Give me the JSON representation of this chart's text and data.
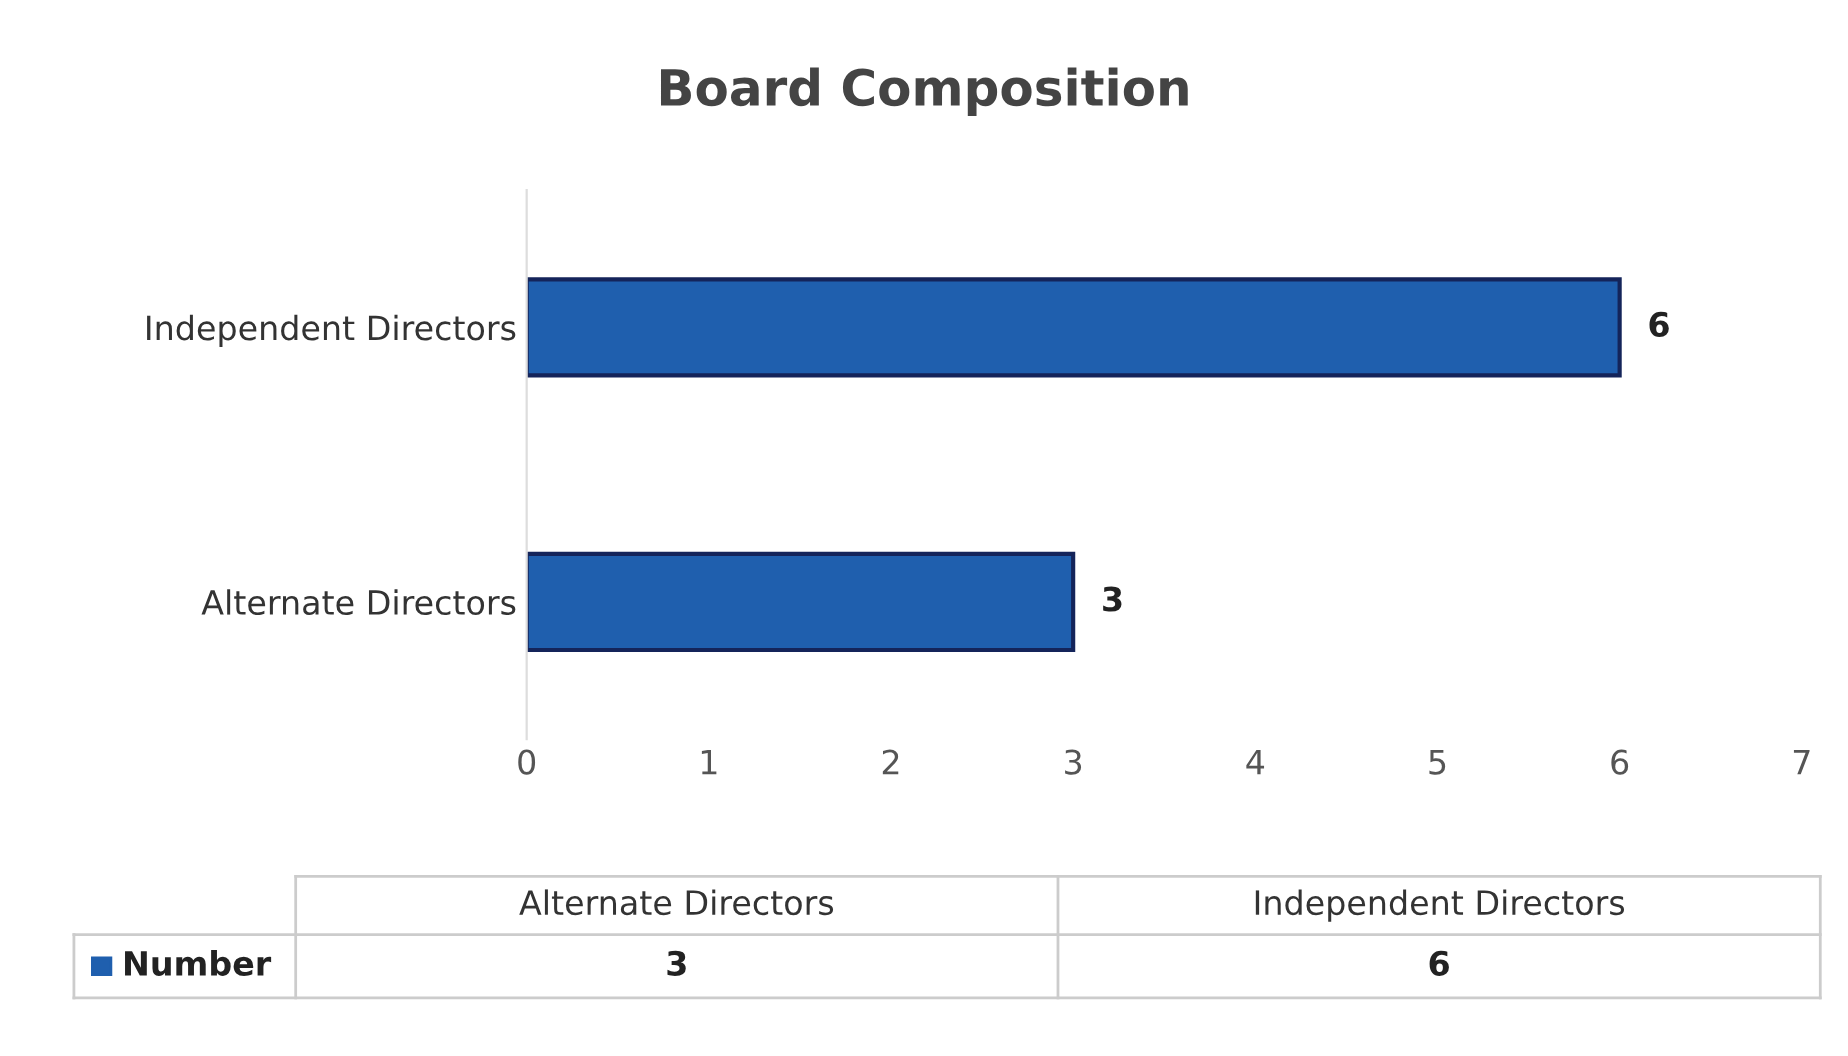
{
  "chart_data": {
    "type": "bar",
    "title": "Board Composition",
    "orientation": "horizontal",
    "categories": [
      "Independent Directors",
      "Alternate Directors"
    ],
    "series": [
      {
        "name": "Number",
        "color": "#1f5fae",
        "values": [
          6,
          3
        ]
      }
    ],
    "xlim": [
      0,
      7
    ],
    "xticks": [
      0,
      1,
      2,
      3,
      4,
      5,
      6,
      7
    ],
    "data_labels": true,
    "annotations": [
      "3",
      "6"
    ],
    "legend": "bottom",
    "grid": false
  }
}
